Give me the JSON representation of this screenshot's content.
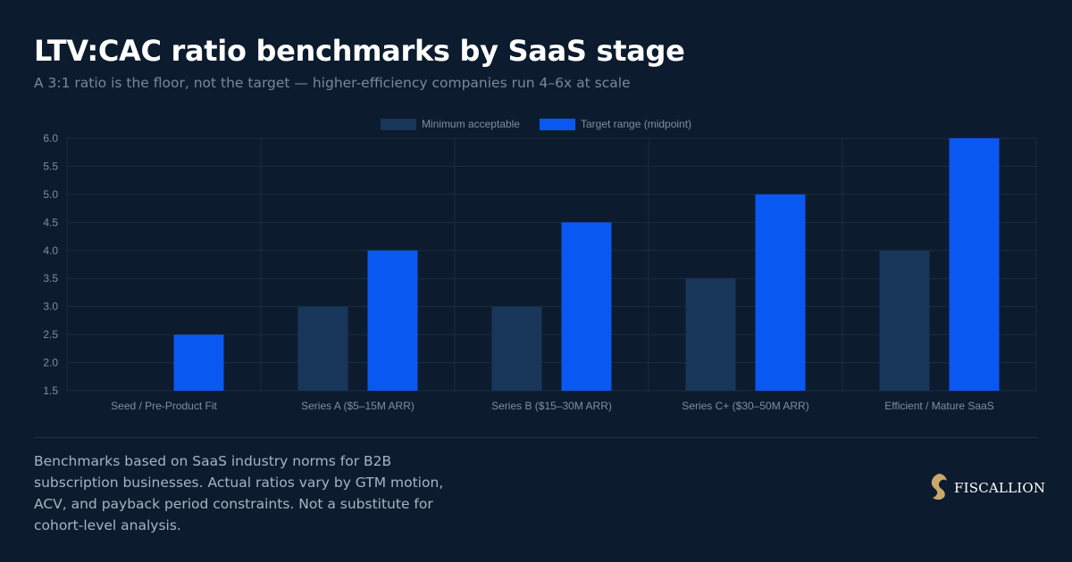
{
  "header": {
    "title": "LTV:CAC ratio benchmarks by SaaS stage",
    "subtitle": "A 3:1 ratio is the floor, not the target — higher-efficiency companies run 4–6x at scale"
  },
  "colors": {
    "background": "#0c1c2e",
    "minimum": "#17365a",
    "target": "#0a58f2",
    "grid": "#1a2d3d",
    "tick_text": "#7f8ea0"
  },
  "chart_data": {
    "type": "bar",
    "categories": [
      "Seed / Pre-Product Fit",
      "Series A ($5–15M ARR)",
      "Series B ($15–30M ARR)",
      "Series C+ ($30–50M ARR)",
      "Efficient / Mature SaaS"
    ],
    "series": [
      {
        "name": "Minimum acceptable",
        "values": [
          1.5,
          3.0,
          3.0,
          3.5,
          4.0
        ]
      },
      {
        "name": "Target range (midpoint)",
        "values": [
          2.5,
          4.0,
          4.5,
          5.0,
          6.0
        ]
      }
    ],
    "ylim": [
      1.5,
      6.0
    ],
    "yticks": [
      "1.5",
      "2.0",
      "2.5",
      "3.0",
      "3.5",
      "4.0",
      "4.5",
      "5.0",
      "5.5",
      "6.0"
    ],
    "legend": "top-center",
    "grid": true
  },
  "footer": {
    "note": "Benchmarks based on SaaS industry norms for B2B subscription businesses. Actual ratios vary by GTM motion, ACV, and payback period constraints. Not a substitute for cohort-level analysis.",
    "brand": "FISCALLION"
  }
}
